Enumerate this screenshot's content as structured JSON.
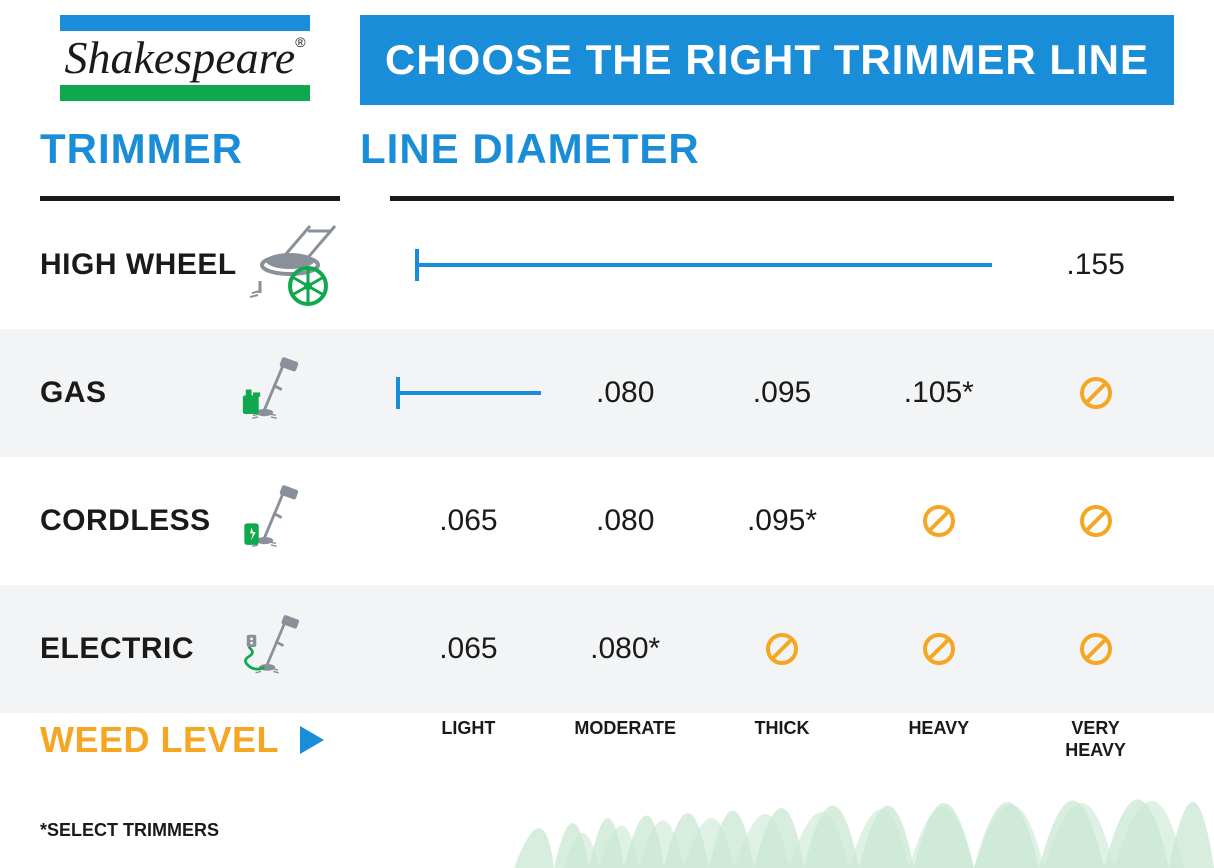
{
  "brand": {
    "name": "Shakespeare",
    "reg_mark": "®",
    "top_bar_color": "#1a8dd8",
    "bottom_bar_color": "#10a84e"
  },
  "banner": {
    "text": "CHOOSE THE RIGHT TRIMMER LINE",
    "bg_color": "#1a8dd8",
    "text_color": "#ffffff"
  },
  "column_headers": {
    "left": "TRIMMER",
    "right": "LINE DIAMETER",
    "color": "#1a8dd8"
  },
  "weed_levels": [
    "LIGHT",
    "MODERATE",
    "THICK",
    "HEAVY",
    "VERY\nHEAVY"
  ],
  "weed_label": "WEED LEVEL",
  "weed_label_color": "#f5a623",
  "arrow_color": "#1a8dd8",
  "rows": [
    {
      "name": "HIGH WHEEL",
      "icon": "high-wheel",
      "alt": false,
      "cells": [
        {
          "type": "line",
          "span": 4
        },
        {
          "type": "value",
          "text": ".155"
        }
      ]
    },
    {
      "name": "GAS",
      "icon": "gas",
      "alt": true,
      "cells": [
        {
          "type": "line",
          "span": 1
        },
        {
          "type": "value",
          "text": ".080"
        },
        {
          "type": "value",
          "text": ".095"
        },
        {
          "type": "value",
          "text": ".105*"
        },
        {
          "type": "no"
        }
      ]
    },
    {
      "name": "CORDLESS",
      "icon": "cordless",
      "alt": false,
      "cells": [
        {
          "type": "value",
          "text": ".065"
        },
        {
          "type": "value",
          "text": ".080"
        },
        {
          "type": "value",
          "text": ".095*"
        },
        {
          "type": "no"
        },
        {
          "type": "no"
        }
      ]
    },
    {
      "name": "ELECTRIC",
      "icon": "electric",
      "alt": true,
      "cells": [
        {
          "type": "value",
          "text": ".065"
        },
        {
          "type": "value",
          "text": ".080*"
        },
        {
          "type": "no"
        },
        {
          "type": "no"
        },
        {
          "type": "no"
        }
      ]
    }
  ],
  "footnote": "*SELECT TRIMMERS",
  "colors": {
    "blue": "#1a8dd8",
    "green": "#10a84e",
    "orange": "#f5a623",
    "no_icon": "#f5a623",
    "row_alt_bg": "#f2f4f6",
    "text": "#1a1a1a",
    "icon_gray": "#8a9099",
    "icon_green": "#10a84e",
    "grass_fill": "#c9e8d4"
  }
}
